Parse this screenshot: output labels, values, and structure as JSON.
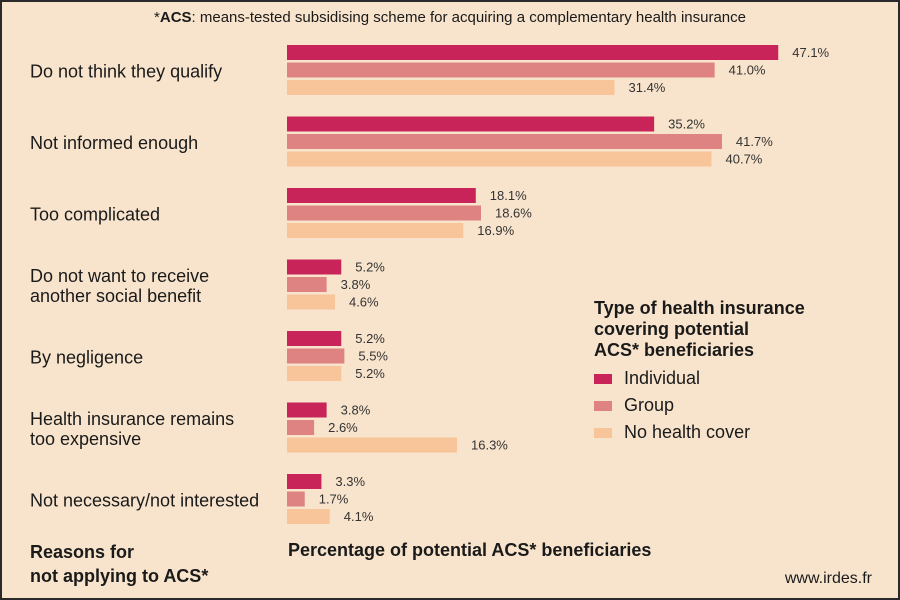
{
  "note": {
    "prefix": "*",
    "abbr": "ACS",
    "text": ": means-tested subsidising scheme for acquiring a complementary health insurance"
  },
  "colors": {
    "background": "#f8e4cc",
    "individual": "#c8245a",
    "group": "#df8282",
    "no_cover": "#f8c49a"
  },
  "chart_data": {
    "type": "bar",
    "orientation": "horizontal",
    "categories": [
      [
        "Do not think they qualify"
      ],
      [
        "Not informed enough"
      ],
      [
        "Too complicated"
      ],
      [
        "Do not want to receive",
        "another social benefit"
      ],
      [
        "By negligence"
      ],
      [
        "Health insurance remains",
        "too expensive"
      ],
      [
        "Not necessary/not interested"
      ]
    ],
    "series": [
      {
        "name": "Individual",
        "color": "#c8245a",
        "values": [
          47.1,
          35.2,
          18.1,
          5.2,
          5.2,
          3.8,
          3.3
        ]
      },
      {
        "name": "Group",
        "color": "#df8282",
        "values": [
          41.0,
          41.7,
          18.6,
          3.8,
          5.5,
          2.6,
          1.7
        ]
      },
      {
        "name": "No health cover",
        "color": "#f8c49a",
        "values": [
          31.4,
          40.7,
          16.9,
          4.6,
          5.2,
          16.3,
          4.1
        ]
      }
    ],
    "value_suffix": "%",
    "xlim": [
      0,
      50
    ],
    "grid": false,
    "legend_placement": "right",
    "legend_title": [
      "Type of health insurance",
      "covering potential",
      "ACS* beneficiaries"
    ],
    "xlabel": "Percentage of potential ACS* beneficiaries",
    "ylabel": [
      "Reasons for",
      "not applying to ACS*"
    ]
  },
  "source": "www.irdes.fr"
}
